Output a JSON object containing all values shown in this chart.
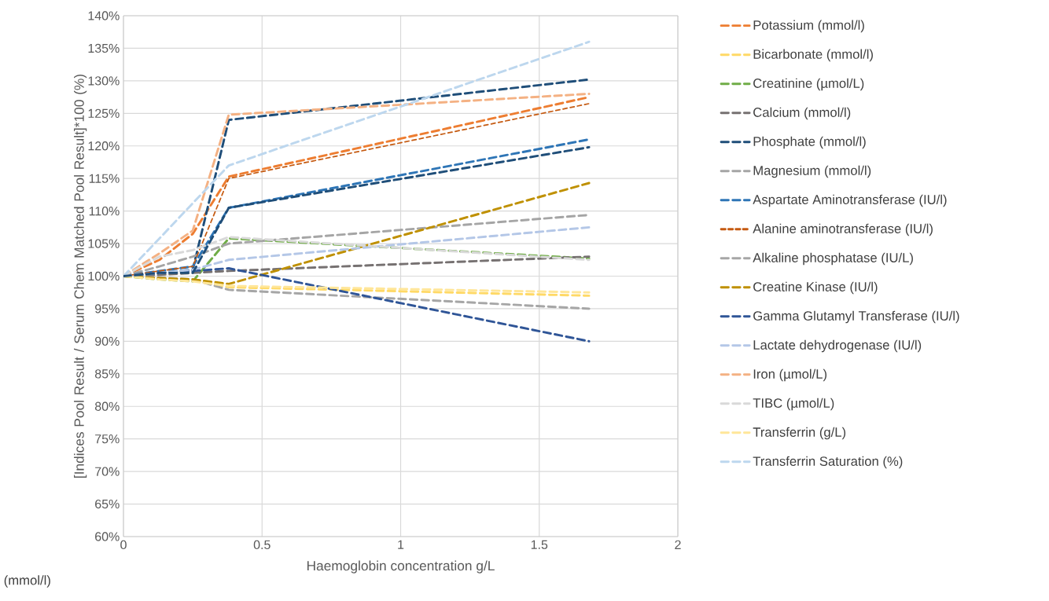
{
  "chart_data": {
    "type": "line",
    "xlabel": "Haemoglobin concentration g/L",
    "ylabel": "[Indices Pool Result / Serum Chem Matched Pool Result]*100 (%)",
    "x": [
      0,
      0.13,
      0.25,
      0.38,
      1.68
    ],
    "series": [
      {
        "name": "Potassium (mmol/l)",
        "color": "#ed7d31",
        "values": [
          100,
          102.5,
          106.5,
          115.3,
          127.5
        ]
      },
      {
        "name": "Bicarbonate (mmol/l)",
        "color": "#ffd966",
        "values": [
          100,
          99.7,
          99.5,
          98.3,
          97.0
        ]
      },
      {
        "name": "Creatinine (µmol/L)",
        "color": "#70ad47",
        "values": [
          100,
          99.5,
          99.2,
          105.8,
          102.7
        ]
      },
      {
        "name": "Calcium (mmol/l)",
        "color": "#767171",
        "values": [
          100,
          100.2,
          100.5,
          100.8,
          103
        ]
      },
      {
        "name": "Phosphate (mmol/l)",
        "color": "#1f4e79",
        "values": [
          100,
          100.5,
          101,
          124,
          130.2
        ]
      },
      {
        "name": "Magnesium (mmol/l)",
        "color": "#a5a5a5",
        "values": [
          100,
          101.5,
          103,
          105,
          109.4
        ]
      },
      {
        "name": "Aspartate Aminotransferase (IU/l)",
        "color": "#2e75b6",
        "values": [
          100,
          100.8,
          101.5,
          110.5,
          121
        ]
      },
      {
        "name": "Alanine aminotransferase (IU/l)",
        "color": "#c55a11",
        "line_style": "densely dashed",
        "values": [
          100,
          100.8,
          101.5,
          115,
          126.5
        ]
      },
      {
        "name": "Alkaline phosphatase (IU/L)",
        "color": "#a6a6a6",
        "values": [
          100,
          99.8,
          99.5,
          97.9,
          95
        ]
      },
      {
        "name": "Creatine Kinase (IU/l)",
        "color": "#bf9000",
        "values": [
          100,
          99.7,
          99.5,
          98.8,
          114.3
        ]
      },
      {
        "name": "Gamma Glutamyl Transferase (IU/l)",
        "color": "#2f5597",
        "values": [
          100,
          100.5,
          100.8,
          101.2,
          90
        ]
      },
      {
        "name": "Lactate dehydrogenase (IU/l)",
        "color": "#b4c7e7",
        "values": [
          100,
          100.5,
          101,
          102.5,
          107.5
        ]
      },
      {
        "name": "Iron (µmol/L)",
        "color": "#f4b183",
        "values": [
          100,
          103.5,
          107,
          124.8,
          128
        ]
      },
      {
        "name": "TIBC (µmol/L)",
        "color": "#d9d9d9",
        "values": [
          100,
          103,
          104,
          106,
          102.5
        ]
      },
      {
        "name": "Transferrin (g/L)",
        "color": "#ffe699",
        "values": [
          100,
          99.5,
          99.2,
          98.5,
          97.5
        ]
      },
      {
        "name": "Transferrin Saturation (%)",
        "color": "#bdd7ee",
        "values": [
          100,
          105.8,
          111.2,
          117,
          136
        ]
      },
      {
        "color": "#1f4e79",
        "values": [
          100,
          100.5,
          100.5,
          110.5,
          119.8
        ]
      }
    ],
    "xlim": [
      0,
      2
    ],
    "xticks": [
      0,
      0.5,
      1,
      1.5,
      2
    ],
    "ylim": [
      60,
      140
    ],
    "yticks": [
      {
        "value": 60,
        "label": "60%"
      },
      {
        "value": 65,
        "label": "65%"
      },
      {
        "value": 70,
        "label": "70%"
      },
      {
        "value": 75,
        "label": "75%"
      },
      {
        "value": 80,
        "label": "80%"
      },
      {
        "value": 85,
        "label": "85%"
      },
      {
        "value": 90,
        "label": "90%"
      },
      {
        "value": 95,
        "label": "95%"
      },
      {
        "value": 100,
        "label": "100%"
      },
      {
        "value": 105,
        "label": "105%"
      },
      {
        "value": 110,
        "label": "110%"
      },
      {
        "value": 115,
        "label": "115%"
      },
      {
        "value": 120,
        "label": "120%"
      },
      {
        "value": 125,
        "label": "125%"
      },
      {
        "value": 130,
        "label": "130%"
      },
      {
        "value": 135,
        "label": "135%"
      },
      {
        "value": 140,
        "label": "140%"
      }
    ],
    "grid": true,
    "legend": "right",
    "line_style": "dashed",
    "marker": "none",
    "annotations": [
      "(mmol/l)"
    ]
  }
}
